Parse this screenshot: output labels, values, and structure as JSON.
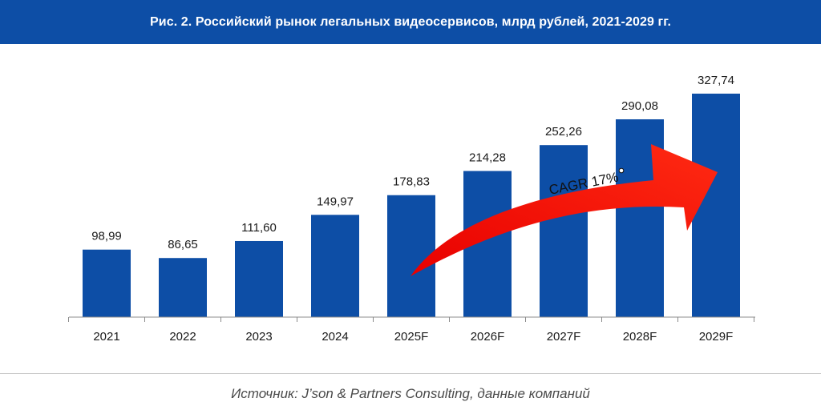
{
  "header": {
    "title": "Рис. 2. Российский рынок легальных видеосервисов, млрд рублей, 2021-2029 гг."
  },
  "chart_data": {
    "type": "bar",
    "title": "Рис. 2. Российский рынок легальных видеосервисов, млрд рублей, 2021-2029 гг.",
    "categories": [
      "2021",
      "2022",
      "2023",
      "2024",
      "2025F",
      "2026F",
      "2027F",
      "2028F",
      "2029F"
    ],
    "values": [
      98.99,
      86.65,
      111.6,
      149.97,
      178.83,
      214.28,
      252.26,
      290.08,
      327.74
    ],
    "value_labels": [
      "98,99",
      "86,65",
      "111,60",
      "149,97",
      "178,83",
      "214,28",
      "252,26",
      "290,08",
      "327,74"
    ],
    "xlabel": "",
    "ylabel": "млрд рублей",
    "ylim": [
      0,
      330
    ],
    "grid": false,
    "annotation": "CAGR 17%",
    "annotation_marker": "°"
  },
  "colors": {
    "header_bg": "#0d4ea6",
    "bar": "#0d4ea6",
    "arrow": "#ff1a0a",
    "text": "#1a1a1a"
  },
  "footer": {
    "source": "Источник: J’son & Partners Consulting, данные компаний"
  }
}
